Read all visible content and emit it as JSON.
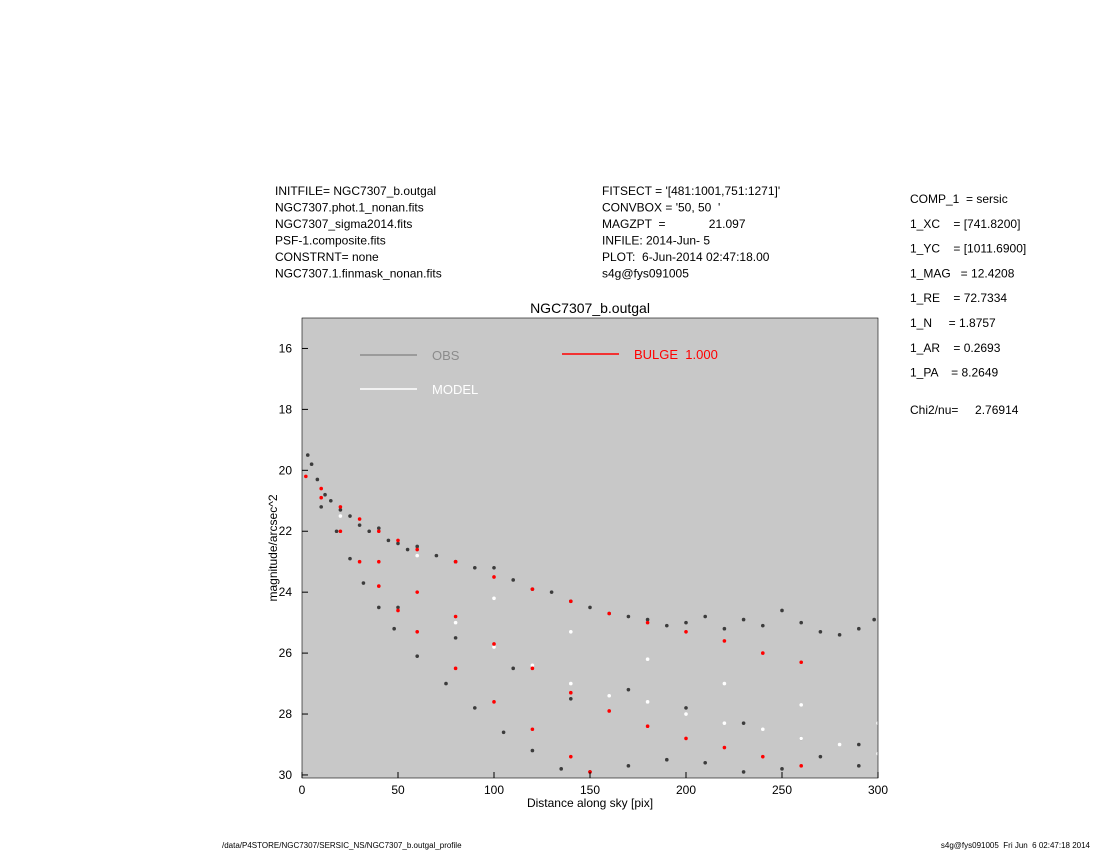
{
  "header": {
    "left": [
      "INITFILE= NGC7307_b.outgal",
      "NGC7307.phot.1_nonan.fits",
      "NGC7307_sigma2014.fits",
      "PSF-1.composite.fits",
      "CONSTRNT= none",
      "NGC7307.1.finmask_nonan.fits"
    ],
    "middle": [
      "FITSECT = '[481:1001,751:1271]'",
      "CONVBOX = '50, 50  '",
      "MAGZPT  =             21.097",
      "INFILE: 2014-Jun- 5",
      "PLOT:  6-Jun-2014 02:47:18.00",
      "s4g@fys091005"
    ],
    "right": [
      "COMP_1  = sersic",
      "1_XC    = [741.8200]",
      "1_YC    = [1011.6900]",
      "1_MAG   = 12.4208",
      "1_RE    = 72.7334",
      "1_N     = 1.8757",
      "1_AR    = 0.2693",
      "1_PA    = 8.2649"
    ],
    "chi2": "Chi2/nu=     2.76914"
  },
  "footer": {
    "left": "/data/P4STORE/NGC7307/SERSIC_NS/NGC7307_b.outgal_profile",
    "right": "s4g@fys091005  Fri Jun  6 02:47:18 2014"
  },
  "chart_data": {
    "type": "scatter",
    "title": "NGC7307_b.outgal",
    "x_label": "Distance along sky [pix]",
    "y_label": "magnitude/arcsec^2",
    "xlim": [
      0,
      300
    ],
    "ylim": [
      15,
      30.1
    ],
    "y_inverted": true,
    "xticks": [
      0,
      50,
      100,
      150,
      200,
      250,
      300
    ],
    "yticks": [
      16,
      18,
      20,
      22,
      24,
      26,
      28,
      30
    ],
    "background": "#c8c8c8",
    "series": [
      {
        "name": "OBS",
        "color": "#3c3c3c",
        "legend_color": "#8c8c8c",
        "x": [
          3,
          5,
          8,
          12,
          15,
          20,
          25,
          30,
          35,
          40,
          45,
          50,
          55,
          60,
          70,
          80,
          90,
          100,
          110,
          120,
          130,
          140,
          150,
          160,
          170,
          180,
          190,
          200,
          210,
          220,
          230,
          240,
          250,
          260,
          270,
          280,
          290,
          298,
          10,
          18,
          25,
          32,
          40,
          48,
          60,
          75,
          90,
          105,
          120,
          135,
          150,
          170,
          190,
          210,
          230,
          250,
          270,
          290,
          50,
          80,
          110,
          140,
          170,
          200,
          230,
          260,
          290
        ],
        "y": [
          19.5,
          19.8,
          20.3,
          20.8,
          21.0,
          21.3,
          21.5,
          21.8,
          22.0,
          21.9,
          22.3,
          22.4,
          22.6,
          22.5,
          22.8,
          23.0,
          23.2,
          23.2,
          23.6,
          23.9,
          24.0,
          24.3,
          24.5,
          24.7,
          24.8,
          24.9,
          25.1,
          25.0,
          24.8,
          25.2,
          24.9,
          25.1,
          24.6,
          25.0,
          25.3,
          25.4,
          25.2,
          24.9,
          21.2,
          22.0,
          22.9,
          23.7,
          24.5,
          25.2,
          26.1,
          27.0,
          27.8,
          28.6,
          29.2,
          29.8,
          29.9,
          29.7,
          29.5,
          29.6,
          29.9,
          29.8,
          29.4,
          29.7,
          24.5,
          25.5,
          26.5,
          27.5,
          27.2,
          27.8,
          28.3,
          28.8,
          29.0
        ]
      },
      {
        "name": "MODEL",
        "color": "#ffffff",
        "legend_color": "#ffffff",
        "x": [
          20,
          40,
          60,
          80,
          100,
          120,
          140,
          160,
          180,
          200,
          220,
          240,
          260,
          280,
          300,
          60,
          100,
          140,
          180,
          220,
          260,
          300
        ],
        "y": [
          21.5,
          23,
          24,
          25,
          25.8,
          26.4,
          27,
          27.4,
          27.6,
          28,
          28.3,
          28.5,
          28.8,
          29,
          29.3,
          22.8,
          24.2,
          25.3,
          26.2,
          27.0,
          27.7,
          28.3
        ]
      },
      {
        "name": "BULGE  1.000",
        "color": "#ff0000",
        "legend_color": "#ff0000",
        "x": [
          2,
          10,
          20,
          30,
          40,
          50,
          60,
          80,
          100,
          120,
          140,
          160,
          180,
          200,
          220,
          240,
          260,
          10,
          20,
          30,
          40,
          50,
          60,
          80,
          100,
          120,
          140,
          150,
          40,
          60,
          80,
          100,
          120,
          140,
          160,
          180,
          200,
          220,
          240,
          260
        ],
        "y": [
          20.2,
          20.6,
          21.2,
          21.6,
          22.0,
          22.3,
          22.6,
          23.0,
          23.5,
          23.9,
          24.3,
          24.7,
          25.0,
          25.3,
          25.6,
          26.0,
          26.3,
          20.9,
          22.0,
          23.0,
          23.8,
          24.6,
          25.3,
          26.5,
          27.6,
          28.5,
          29.4,
          29.9,
          23.0,
          24.0,
          24.8,
          25.7,
          26.5,
          27.3,
          27.9,
          28.4,
          28.8,
          29.1,
          29.4,
          29.7
        ]
      }
    ]
  }
}
